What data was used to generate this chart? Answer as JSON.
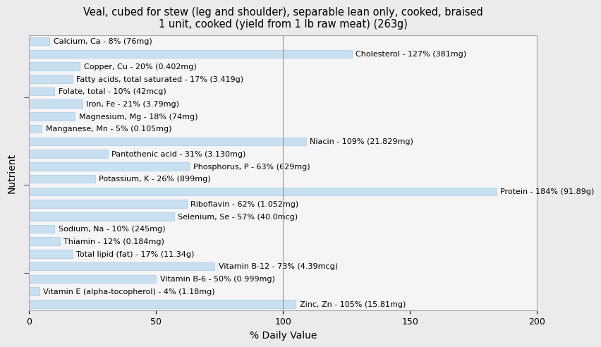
{
  "title": "Veal, cubed for stew (leg and shoulder), separable lean only, cooked, braised\n1 unit, cooked (yield from 1 lb raw meat) (263g)",
  "xlabel": "% Daily Value",
  "ylabel": "Nutrient",
  "xlim": [
    0,
    200
  ],
  "xticks": [
    0,
    50,
    100,
    150,
    200
  ],
  "bar_color": "#c8dff0",
  "bar_edgecolor": "#a8c8e8",
  "background_color": "#ebebeb",
  "plot_bg_color": "#f5f5f5",
  "nutrients": [
    {
      "label": "Calcium, Ca - 8% (76mg)",
      "value": 8
    },
    {
      "label": "Cholesterol - 127% (381mg)",
      "value": 127
    },
    {
      "label": "Copper, Cu - 20% (0.402mg)",
      "value": 20
    },
    {
      "label": "Fatty acids, total saturated - 17% (3.419g)",
      "value": 17
    },
    {
      "label": "Folate, total - 10% (42mcg)",
      "value": 10
    },
    {
      "label": "Iron, Fe - 21% (3.79mg)",
      "value": 21
    },
    {
      "label": "Magnesium, Mg - 18% (74mg)",
      "value": 18
    },
    {
      "label": "Manganese, Mn - 5% (0.105mg)",
      "value": 5
    },
    {
      "label": "Niacin - 109% (21.829mg)",
      "value": 109
    },
    {
      "label": "Pantothenic acid - 31% (3.130mg)",
      "value": 31
    },
    {
      "label": "Phosphorus, P - 63% (629mg)",
      "value": 63
    },
    {
      "label": "Potassium, K - 26% (899mg)",
      "value": 26
    },
    {
      "label": "Protein - 184% (91.89g)",
      "value": 184
    },
    {
      "label": "Riboflavin - 62% (1.052mg)",
      "value": 62
    },
    {
      "label": "Selenium, Se - 57% (40.0mcg)",
      "value": 57
    },
    {
      "label": "Sodium, Na - 10% (245mg)",
      "value": 10
    },
    {
      "label": "Thiamin - 12% (0.184mg)",
      "value": 12
    },
    {
      "label": "Total lipid (fat) - 17% (11.34g)",
      "value": 17
    },
    {
      "label": "Vitamin B-12 - 73% (4.39mcg)",
      "value": 73
    },
    {
      "label": "Vitamin B-6 - 50% (0.999mg)",
      "value": 50
    },
    {
      "label": "Vitamin E (alpha-tocopherol) - 4% (1.18mg)",
      "value": 4
    },
    {
      "label": "Zinc, Zn - 105% (15.81mg)",
      "value": 105
    }
  ],
  "title_fontsize": 10.5,
  "label_fontsize": 8,
  "tick_fontsize": 9,
  "axis_label_fontsize": 10,
  "ytick_positions": [
    2.5,
    9.5,
    16.5
  ],
  "vline_color": "#999999",
  "spine_color": "#aaaaaa"
}
